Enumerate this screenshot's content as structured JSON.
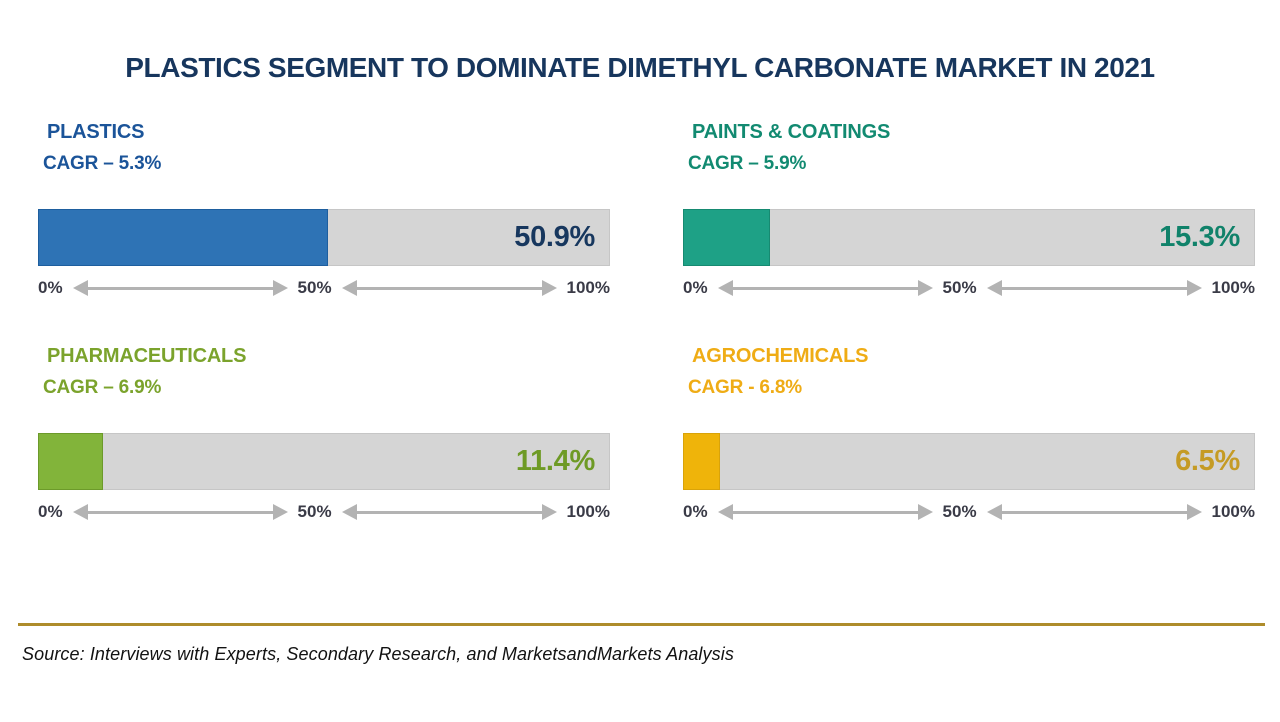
{
  "title": "PLASTICS SEGMENT TO DOMINATE DIMETHYL CARBONATE MARKET IN 2021",
  "axis": {
    "ticks": [
      "0%",
      "50%",
      "100%"
    ]
  },
  "footer": {
    "source": "Source: Interviews with Experts, Secondary Research, and MarketsandMarkets Analysis"
  },
  "colors": {
    "title": "#17365D",
    "track": "#D5D5D5",
    "arrow": "#B3B3B3",
    "axis_text": "#3A3B47",
    "divider": "#AE8C2B"
  },
  "charts": [
    {
      "label": "PLASTICS",
      "cagr_label": "CAGR – 5.3%",
      "value": 50.9,
      "value_label": "50.9%",
      "bar_color": "#2E73B5",
      "bar_border": "#1E5E9E",
      "text_color": "#1B5499",
      "value_color": "#17375E"
    },
    {
      "label": "PAINTS & COATINGS",
      "cagr_label": "CAGR – 5.9%",
      "value": 15.3,
      "value_label": "15.3%",
      "bar_color": "#1EA186",
      "bar_border": "#168A71",
      "text_color": "#128A71",
      "value_color": "#10826A"
    },
    {
      "label": "PHARMACEUTICALS",
      "cagr_label": "CAGR – 6.9%",
      "value": 11.4,
      "value_label": "11.4%",
      "bar_color": "#82B43A",
      "bar_border": "#6C9A2A",
      "text_color": "#7BA32C",
      "value_color": "#6E9A25"
    },
    {
      "label": "AGROCHEMICALS",
      "cagr_label": "CAGR - 6.8%",
      "value": 6.5,
      "value_label": "6.5%",
      "bar_color": "#EFB40A",
      "bar_border": "#D9A309",
      "text_color": "#EFAC15",
      "value_color": "#C59B25"
    }
  ],
  "chart_data": {
    "type": "bar",
    "orientation": "horizontal",
    "title": "PLASTICS SEGMENT TO DOMINATE DIMETHYL CARBONATE MARKET IN 2021",
    "categories": [
      "PLASTICS",
      "PAINTS & COATINGS",
      "PHARMACEUTICALS",
      "AGROCHEMICALS"
    ],
    "series": [
      {
        "name": "share_2021_percent",
        "values": [
          50.9,
          15.3,
          11.4,
          6.5
        ]
      },
      {
        "name": "cagr_percent",
        "values": [
          5.3,
          5.9,
          6.9,
          6.8
        ]
      }
    ],
    "xlabel": "",
    "ylabel": "",
    "xlim": [
      0,
      100
    ],
    "tick_labels": [
      "0%",
      "50%",
      "100%"
    ],
    "grid": false,
    "legend": false,
    "source": "Source: Interviews with Experts, Secondary Research, and MarketsandMarkets Analysis"
  }
}
